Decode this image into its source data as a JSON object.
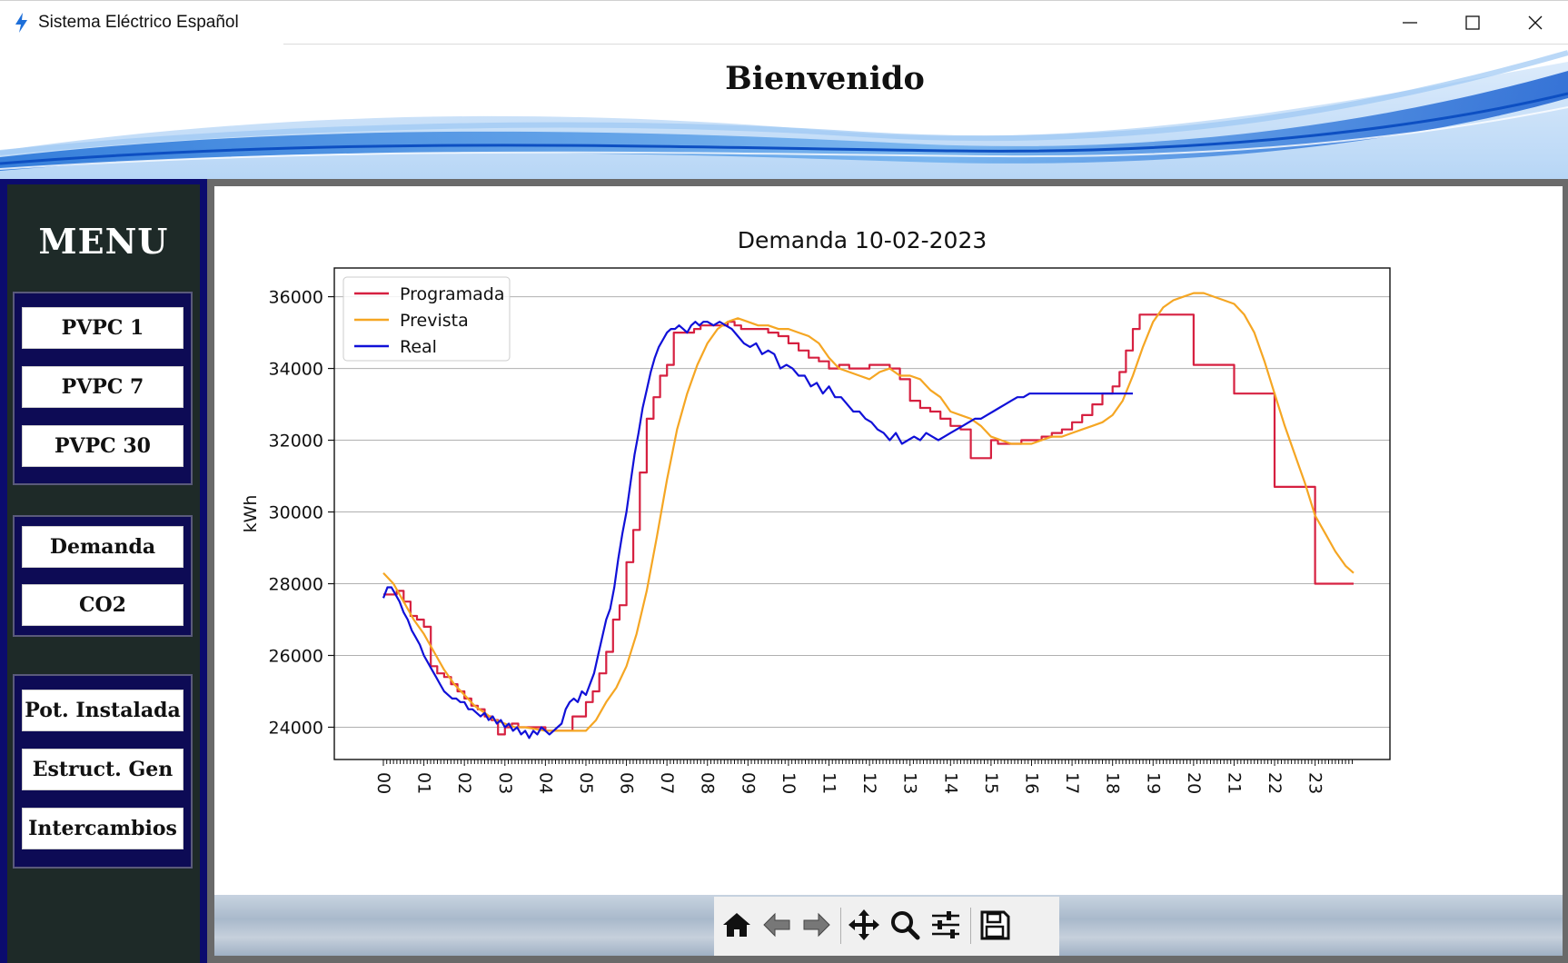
{
  "window": {
    "title": "Sistema Eléctrico Español",
    "accent": "#1e6fd9"
  },
  "banner": {
    "title": "Bienvenido"
  },
  "sidebar": {
    "menu_title": "MENU",
    "group1": [
      "PVPC 1",
      "PVPC 7",
      "PVPC 30"
    ],
    "group2": [
      "Demanda",
      "CO2"
    ],
    "group3": [
      "Pot. Instalada",
      "Estruct. Gen",
      "Intercambios"
    ]
  },
  "toolbar": {
    "icons": [
      "home-icon",
      "back-arrow-icon",
      "forward-arrow-icon",
      "pan-icon",
      "zoom-icon",
      "configure-subplots-icon",
      "save-icon"
    ]
  },
  "chart_data": {
    "type": "line",
    "title": "Demanda 10-02-2023",
    "xlabel": "",
    "ylabel": "kWh",
    "ylim": [
      23100,
      36800
    ],
    "yticks": [
      24000,
      26000,
      28000,
      30000,
      32000,
      34000,
      36000
    ],
    "xticks": [
      "00",
      "01",
      "02",
      "03",
      "04",
      "05",
      "06",
      "07",
      "08",
      "09",
      "10",
      "11",
      "12",
      "13",
      "14",
      "15",
      "16",
      "17",
      "18",
      "19",
      "20",
      "21",
      "22",
      "23"
    ],
    "x_unit": "hour of day",
    "grid": "horizontal",
    "legend_position": "top-left",
    "series": [
      {
        "name": "Programada",
        "color": "#d62040",
        "step": true,
        "x": [
          0,
          0.33,
          0.5,
          0.67,
          0.83,
          1,
          1.17,
          1.33,
          1.5,
          1.67,
          1.83,
          2,
          2.17,
          2.33,
          2.5,
          2.67,
          2.83,
          3,
          3.17,
          3.33,
          3.5,
          3.67,
          3.83,
          4,
          4.17,
          4.33,
          4.5,
          4.67,
          4.83,
          5,
          5.17,
          5.33,
          5.5,
          5.67,
          5.83,
          6,
          6.17,
          6.33,
          6.5,
          6.67,
          6.83,
          7,
          7.17,
          7.33,
          7.5,
          7.67,
          7.83,
          8,
          8.17,
          8.33,
          8.5,
          8.67,
          8.83,
          9,
          9.25,
          9.5,
          9.75,
          10,
          10.25,
          10.5,
          10.75,
          11,
          11.25,
          11.5,
          11.75,
          12,
          12.25,
          12.5,
          12.75,
          13,
          13.25,
          13.5,
          13.75,
          14,
          14.25,
          14.5,
          14.75,
          15,
          15.17,
          15.33,
          15.5,
          15.75,
          16,
          16.25,
          16.5,
          16.75,
          17,
          17.25,
          17.5,
          17.75,
          18,
          18.17,
          18.33,
          18.5,
          18.67,
          18.83,
          19,
          20,
          21,
          22,
          23,
          23.95
        ],
        "y": [
          27700,
          27800,
          27500,
          27100,
          27000,
          26800,
          25700,
          25500,
          25400,
          25200,
          25000,
          24800,
          24600,
          24500,
          24300,
          24200,
          23800,
          24000,
          24100,
          24000,
          24000,
          24000,
          24000,
          23900,
          23900,
          23900,
          23900,
          24300,
          24300,
          24700,
          25000,
          25500,
          26100,
          27000,
          27400,
          28600,
          29500,
          31100,
          32600,
          33200,
          33800,
          34100,
          35000,
          35000,
          35000,
          35100,
          35200,
          35200,
          35200,
          35200,
          35300,
          35200,
          35100,
          35100,
          35100,
          35000,
          34900,
          34700,
          34500,
          34300,
          34200,
          34000,
          34100,
          34000,
          34000,
          34100,
          34100,
          34000,
          33700,
          33100,
          32900,
          32800,
          32600,
          32400,
          32300,
          31500,
          31500,
          32000,
          31900,
          31900,
          31900,
          32000,
          32000,
          32100,
          32200,
          32300,
          32500,
          32700,
          33000,
          33300,
          33500,
          33900,
          34500,
          35100,
          35500,
          35500,
          35500,
          34100,
          33300,
          30700,
          28000,
          28000
        ]
      },
      {
        "name": "Prevista",
        "color": "#f5a623",
        "x": [
          0,
          0.25,
          0.5,
          0.75,
          1,
          1.25,
          1.5,
          1.75,
          2,
          2.25,
          2.5,
          2.75,
          3,
          3.25,
          3.5,
          3.75,
          4,
          4.25,
          4.5,
          4.75,
          5,
          5.25,
          5.5,
          5.75,
          6,
          6.25,
          6.5,
          6.75,
          7,
          7.25,
          7.5,
          7.75,
          8,
          8.25,
          8.5,
          8.75,
          9,
          9.25,
          9.5,
          9.75,
          10,
          10.25,
          10.5,
          10.75,
          11,
          11.25,
          11.5,
          11.75,
          12,
          12.25,
          12.5,
          12.75,
          13,
          13.25,
          13.5,
          13.75,
          14,
          14.25,
          14.5,
          14.75,
          15,
          15.25,
          15.5,
          15.75,
          16,
          16.25,
          16.5,
          16.75,
          17,
          17.25,
          17.5,
          17.75,
          18,
          18.25,
          18.5,
          18.75,
          19,
          19.25,
          19.5,
          19.75,
          20,
          20.25,
          20.5,
          20.75,
          21,
          21.25,
          21.5,
          21.75,
          22,
          22.25,
          22.5,
          22.75,
          23,
          23.25,
          23.5,
          23.75,
          23.95
        ],
        "y": [
          28300,
          28000,
          27500,
          27000,
          26600,
          26100,
          25600,
          25200,
          24900,
          24600,
          24400,
          24200,
          24100,
          24000,
          24000,
          23950,
          23900,
          23900,
          23900,
          23900,
          23900,
          24200,
          24700,
          25100,
          25700,
          26600,
          27800,
          29300,
          30900,
          32300,
          33300,
          34100,
          34700,
          35100,
          35300,
          35400,
          35300,
          35200,
          35200,
          35100,
          35100,
          35000,
          34900,
          34700,
          34300,
          34000,
          33900,
          33800,
          33700,
          33900,
          34000,
          33800,
          33800,
          33700,
          33400,
          33200,
          32800,
          32700,
          32600,
          32400,
          32100,
          32000,
          31900,
          31900,
          31900,
          32000,
          32100,
          32100,
          32200,
          32300,
          32400,
          32500,
          32700,
          33100,
          33800,
          34600,
          35300,
          35700,
          35900,
          36000,
          36100,
          36100,
          36000,
          35900,
          35800,
          35500,
          35000,
          34200,
          33300,
          32400,
          31600,
          30800,
          29900,
          29400,
          28900,
          28500,
          28300
        ]
      },
      {
        "name": "Real",
        "color": "#1010d8",
        "x": [
          0,
          0.1,
          0.2,
          0.3,
          0.4,
          0.5,
          0.6,
          0.7,
          0.8,
          0.9,
          1,
          1.1,
          1.2,
          1.3,
          1.4,
          1.5,
          1.6,
          1.7,
          1.8,
          1.9,
          2,
          2.1,
          2.2,
          2.3,
          2.4,
          2.5,
          2.6,
          2.7,
          2.8,
          2.9,
          3,
          3.1,
          3.2,
          3.3,
          3.4,
          3.5,
          3.6,
          3.7,
          3.8,
          3.9,
          4,
          4.1,
          4.2,
          4.3,
          4.4,
          4.5,
          4.6,
          4.7,
          4.8,
          4.9,
          5,
          5.1,
          5.2,
          5.3,
          5.4,
          5.5,
          5.6,
          5.7,
          5.8,
          5.9,
          6,
          6.1,
          6.2,
          6.3,
          6.4,
          6.5,
          6.6,
          6.7,
          6.8,
          6.9,
          7,
          7.1,
          7.2,
          7.3,
          7.4,
          7.5,
          7.6,
          7.7,
          7.8,
          7.9,
          8,
          8.15,
          8.3,
          8.45,
          8.6,
          8.75,
          8.9,
          9.05,
          9.2,
          9.35,
          9.5,
          9.65,
          9.8,
          9.95,
          10.1,
          10.25,
          10.4,
          10.55,
          10.7,
          10.85,
          11,
          11.15,
          11.3,
          11.45,
          11.6,
          11.75,
          11.9,
          12.05,
          12.2,
          12.35,
          12.5,
          12.65,
          12.8,
          12.95,
          13.1,
          13.25,
          13.4,
          13.55,
          13.7,
          13.85,
          14,
          14.15,
          14.3,
          14.45,
          14.6,
          14.75,
          14.9,
          15.05,
          15.2,
          15.35,
          15.5,
          15.65,
          15.8,
          15.95,
          16.1,
          16.25,
          16.4,
          16.55,
          16.7,
          16.85,
          17,
          17.15,
          17.3,
          17.45,
          17.6,
          17.75,
          17.9,
          18.05,
          18.2,
          18.3,
          18.4,
          18.5
        ],
        "y": [
          27600,
          27900,
          27900,
          27700,
          27500,
          27200,
          27000,
          26700,
          26500,
          26300,
          26000,
          25800,
          25600,
          25400,
          25200,
          25000,
          24900,
          24800,
          24800,
          24700,
          24700,
          24500,
          24500,
          24400,
          24300,
          24400,
          24200,
          24300,
          24100,
          24200,
          24000,
          24100,
          23900,
          24000,
          23800,
          23900,
          23700,
          23900,
          23800,
          24000,
          23900,
          23800,
          23900,
          24000,
          24100,
          24500,
          24700,
          24800,
          24700,
          25000,
          24900,
          25200,
          25500,
          26000,
          26500,
          27000,
          27300,
          27900,
          28700,
          29400,
          30000,
          30800,
          31600,
          32200,
          32900,
          33400,
          33900,
          34300,
          34600,
          34800,
          35000,
          35100,
          35100,
          35200,
          35100,
          35000,
          35200,
          35300,
          35200,
          35300,
          35300,
          35200,
          35300,
          35200,
          35100,
          34900,
          34700,
          34600,
          34700,
          34400,
          34500,
          34400,
          34000,
          34100,
          34000,
          33800,
          33800,
          33500,
          33600,
          33300,
          33500,
          33200,
          33200,
          33000,
          32800,
          32800,
          32600,
          32500,
          32300,
          32200,
          32000,
          32200,
          31900,
          32000,
          32100,
          32000,
          32200,
          32100,
          32000,
          32100,
          32200,
          32300,
          32400,
          32500,
          32600,
          32600,
          32700,
          32800,
          32900,
          33000,
          33100,
          33200,
          33200,
          33300,
          33300,
          33300,
          33300,
          33300,
          33300,
          33300,
          33300,
          33300,
          33300,
          33300,
          33300,
          33300,
          33300,
          33300,
          33300,
          33300,
          33300,
          33300
        ]
      }
    ]
  }
}
